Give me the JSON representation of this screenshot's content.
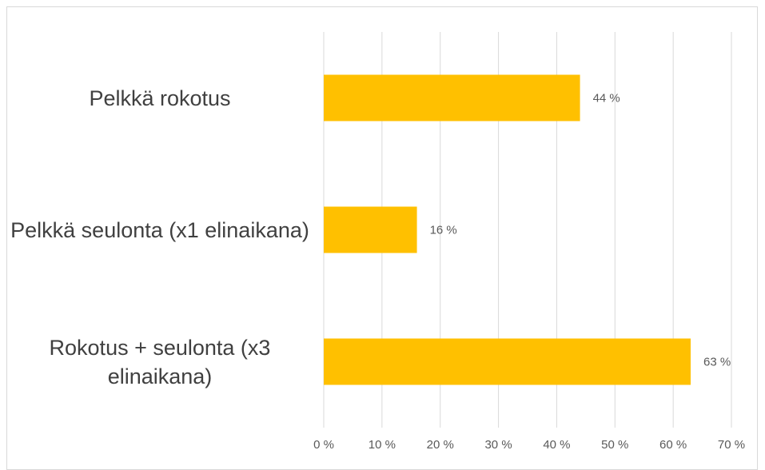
{
  "chart_data": {
    "type": "bar",
    "orientation": "horizontal",
    "categories": [
      "Pelkkä rokotus",
      "Pelkkä seulonta (x1 elinaikana)",
      "Rokotus + seulonta (x3 elinaikana)"
    ],
    "values": [
      44,
      16,
      63
    ],
    "value_labels": [
      "44 %",
      "16 %",
      "63 %"
    ],
    "color": "#FFC000",
    "xlim": [
      0,
      70
    ],
    "xticks": [
      {
        "value": 0,
        "label": "0 %"
      },
      {
        "value": 10,
        "label": "10 %"
      },
      {
        "value": 20,
        "label": "20 %"
      },
      {
        "value": 30,
        "label": "30 %"
      },
      {
        "value": 40,
        "label": "40 %"
      },
      {
        "value": 50,
        "label": "50 %"
      },
      {
        "value": 60,
        "label": "60 %"
      },
      {
        "value": 70,
        "label": "70 %"
      }
    ],
    "grid": true
  }
}
